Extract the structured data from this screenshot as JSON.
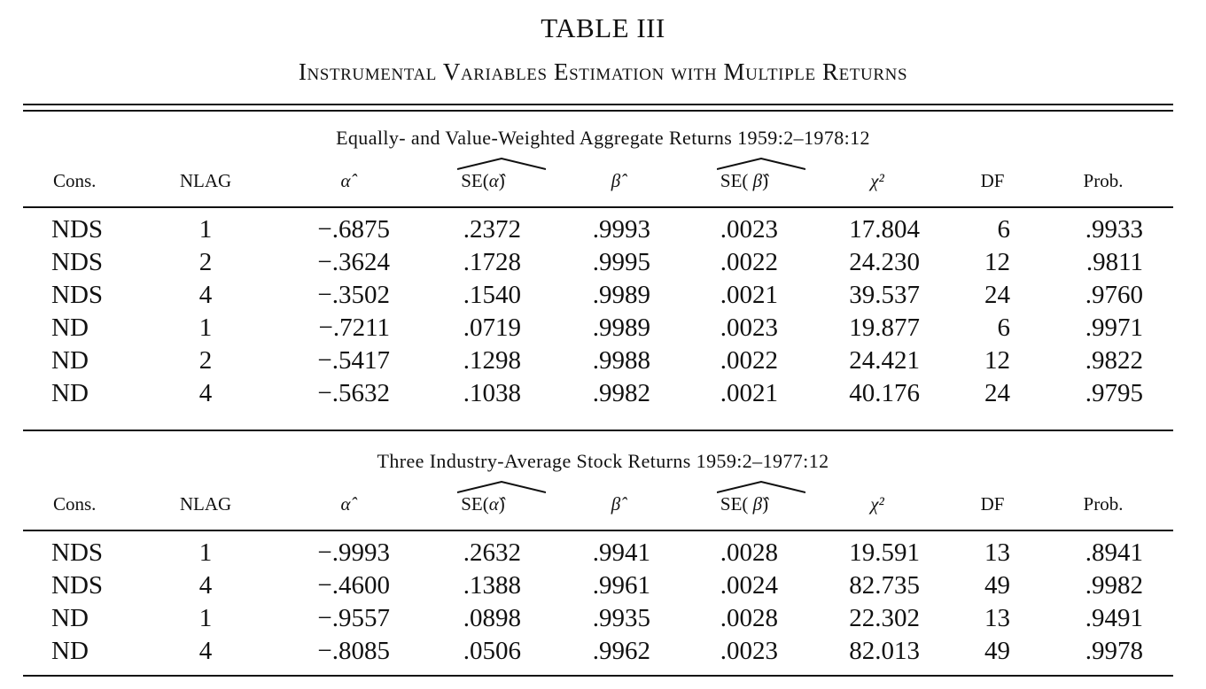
{
  "title": "TABLE III",
  "subtitle": "Instrumental Variables Estimation with Multiple Returns",
  "headers": {
    "cons": "Cons.",
    "nlag": "NLAG",
    "alpha": "α̂",
    "se_alpha_prefix": "SE(",
    "se_alpha_sym": "α̂",
    "se_alpha_suffix": ")",
    "beta": "β̂",
    "se_beta_prefix": "SE( ",
    "se_beta_sym": "β̂",
    "se_beta_suffix": ")",
    "chi": "χ²",
    "df": "DF",
    "prob": "Prob."
  },
  "sections": [
    {
      "caption": "Equally- and Value-Weighted Aggregate Returns 1959:2–1978:12",
      "rows": [
        {
          "cons": "NDS",
          "nlag": "1",
          "alpha": "−.6875",
          "se_alpha": ".2372",
          "beta": ".9993",
          "se_beta": ".0023",
          "chi": "17.804",
          "df": "6",
          "prob": ".9933"
        },
        {
          "cons": "NDS",
          "nlag": "2",
          "alpha": "−.3624",
          "se_alpha": ".1728",
          "beta": ".9995",
          "se_beta": ".0022",
          "chi": "24.230",
          "df": "12",
          "prob": ".9811"
        },
        {
          "cons": "NDS",
          "nlag": "4",
          "alpha": "−.3502",
          "se_alpha": ".1540",
          "beta": ".9989",
          "se_beta": ".0021",
          "chi": "39.537",
          "df": "24",
          "prob": ".9760"
        },
        {
          "cons": "ND",
          "nlag": "1",
          "alpha": "−.7211",
          "se_alpha": ".0719",
          "beta": ".9989",
          "se_beta": ".0023",
          "chi": "19.877",
          "df": "6",
          "prob": ".9971"
        },
        {
          "cons": "ND",
          "nlag": "2",
          "alpha": "−.5417",
          "se_alpha": ".1298",
          "beta": ".9988",
          "se_beta": ".0022",
          "chi": "24.421",
          "df": "12",
          "prob": ".9822"
        },
        {
          "cons": "ND",
          "nlag": "4",
          "alpha": "−.5632",
          "se_alpha": ".1038",
          "beta": ".9982",
          "se_beta": ".0021",
          "chi": "40.176",
          "df": "24",
          "prob": ".9795"
        }
      ]
    },
    {
      "caption": "Three Industry-Average Stock Returns 1959:2–1977:12",
      "rows": [
        {
          "cons": "NDS",
          "nlag": "1",
          "alpha": "−.9993",
          "se_alpha": ".2632",
          "beta": ".9941",
          "se_beta": ".0028",
          "chi": "19.591",
          "df": "13",
          "prob": ".8941"
        },
        {
          "cons": "NDS",
          "nlag": "4",
          "alpha": "−.4600",
          "se_alpha": ".1388",
          "beta": ".9961",
          "se_beta": ".0024",
          "chi": "82.735",
          "df": "49",
          "prob": ".9982"
        },
        {
          "cons": "ND",
          "nlag": "1",
          "alpha": "−.9557",
          "se_alpha": ".0898",
          "beta": ".9935",
          "se_beta": ".0028",
          "chi": "22.302",
          "df": "13",
          "prob": ".9491"
        },
        {
          "cons": "ND",
          "nlag": "4",
          "alpha": "−.8085",
          "se_alpha": ".0506",
          "beta": ".9962",
          "se_beta": ".0023",
          "chi": "82.013",
          "df": "49",
          "prob": ".9978"
        }
      ]
    }
  ]
}
